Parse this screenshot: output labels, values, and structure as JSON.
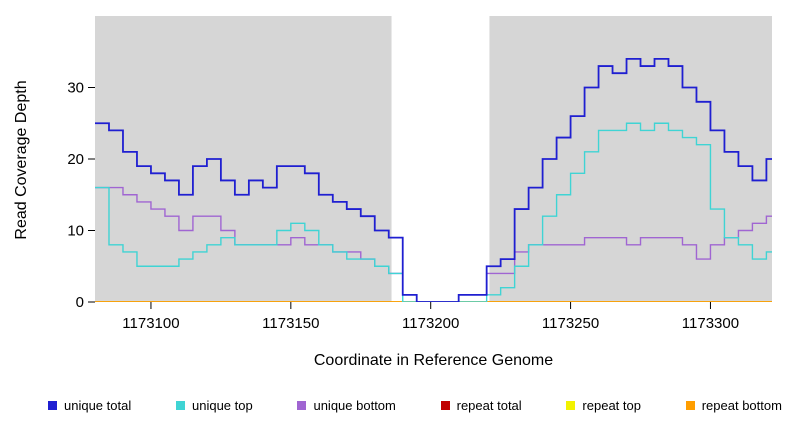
{
  "chart_data": {
    "type": "line",
    "subtype": "step",
    "title": "",
    "xlabel": "Coordinate in Reference Genome",
    "ylabel": "Read Coverage Depth",
    "xlim": [
      1173080,
      1173322
    ],
    "ylim": [
      0,
      40
    ],
    "x_ticks": [
      1173100,
      1173150,
      1173200,
      1173250,
      1173300
    ],
    "y_ticks": [
      0,
      10,
      20,
      30
    ],
    "grid": false,
    "legend_position": "bottom",
    "plot_background": "#d6d6d6",
    "page_background": "#ffffff",
    "gap_region": {
      "start": 1173186,
      "end": 1173221,
      "color": "#ffffff"
    },
    "x_step": 5,
    "x": [
      1173080,
      1173085,
      1173090,
      1173095,
      1173100,
      1173105,
      1173110,
      1173115,
      1173120,
      1173125,
      1173130,
      1173135,
      1173140,
      1173145,
      1173150,
      1173155,
      1173160,
      1173165,
      1173170,
      1173175,
      1173180,
      1173185,
      1173190,
      1173195,
      1173200,
      1173205,
      1173210,
      1173215,
      1173220,
      1173225,
      1173230,
      1173235,
      1173240,
      1173245,
      1173250,
      1173255,
      1173260,
      1173265,
      1173270,
      1173275,
      1173280,
      1173285,
      1173290,
      1173295,
      1173300,
      1173305,
      1173310,
      1173315,
      1173320
    ],
    "series": [
      {
        "name": "unique total",
        "color": "#1f1fd1",
        "values": [
          25,
          24,
          21,
          19,
          18,
          17,
          15,
          19,
          20,
          17,
          15,
          17,
          16,
          19,
          19,
          18,
          15,
          14,
          13,
          12,
          10,
          9,
          1,
          0,
          0,
          0,
          1,
          1,
          5,
          6,
          13,
          16,
          20,
          23,
          26,
          30,
          33,
          32,
          34,
          33,
          34,
          33,
          30,
          28,
          24,
          21,
          19,
          17,
          20
        ]
      },
      {
        "name": "unique top",
        "color": "#3fd4d4",
        "values": [
          16,
          8,
          7,
          5,
          5,
          5,
          6,
          7,
          8,
          9,
          8,
          8,
          8,
          10,
          11,
          10,
          8,
          7,
          6,
          6,
          5,
          4,
          0,
          0,
          0,
          0,
          0,
          0,
          1,
          2,
          5,
          8,
          12,
          15,
          18,
          21,
          24,
          24,
          25,
          24,
          25,
          24,
          23,
          22,
          13,
          9,
          8,
          6,
          7
        ]
      },
      {
        "name": "unique bottom",
        "color": "#a065d2",
        "values": [
          16,
          16,
          15,
          14,
          13,
          12,
          10,
          12,
          12,
          10,
          8,
          8,
          8,
          8,
          9,
          8,
          8,
          7,
          7,
          6,
          5,
          4,
          1,
          0,
          0,
          0,
          1,
          1,
          4,
          4,
          7,
          8,
          8,
          8,
          8,
          9,
          9,
          9,
          8,
          9,
          9,
          9,
          8,
          6,
          8,
          9,
          10,
          11,
          12
        ]
      },
      {
        "name": "repeat total",
        "color": "#c00000",
        "values": [
          0,
          0,
          0,
          0,
          0,
          0,
          0,
          0,
          0,
          0,
          0,
          0,
          0,
          0,
          0,
          0,
          0,
          0,
          0,
          0,
          0,
          0,
          0,
          0,
          0,
          0,
          0,
          0,
          0,
          0,
          0,
          0,
          0,
          0,
          0,
          0,
          0,
          0,
          0,
          0,
          0,
          0,
          0,
          0,
          0,
          0,
          0,
          0,
          0
        ]
      },
      {
        "name": "repeat top",
        "color": "#f2f200",
        "values": [
          0,
          0,
          0,
          0,
          0,
          0,
          0,
          0,
          0,
          0,
          0,
          0,
          0,
          0,
          0,
          0,
          0,
          0,
          0,
          0,
          0,
          0,
          0,
          0,
          0,
          0,
          0,
          0,
          0,
          0,
          0,
          0,
          0,
          0,
          0,
          0,
          0,
          0,
          0,
          0,
          0,
          0,
          0,
          0,
          0,
          0,
          0,
          0,
          0
        ]
      },
      {
        "name": "repeat bottom",
        "color": "#ff9e00",
        "values": [
          0,
          0,
          0,
          0,
          0,
          0,
          0,
          0,
          0,
          0,
          0,
          0,
          0,
          0,
          0,
          0,
          0,
          0,
          0,
          0,
          0,
          0,
          0,
          0,
          0,
          0,
          0,
          0,
          0,
          0,
          0,
          0,
          0,
          0,
          0,
          0,
          0,
          0,
          0,
          0,
          0,
          0,
          0,
          0,
          0,
          0,
          0,
          0,
          0
        ]
      }
    ],
    "draw_order": [
      3,
      4,
      5,
      2,
      1,
      0
    ]
  }
}
